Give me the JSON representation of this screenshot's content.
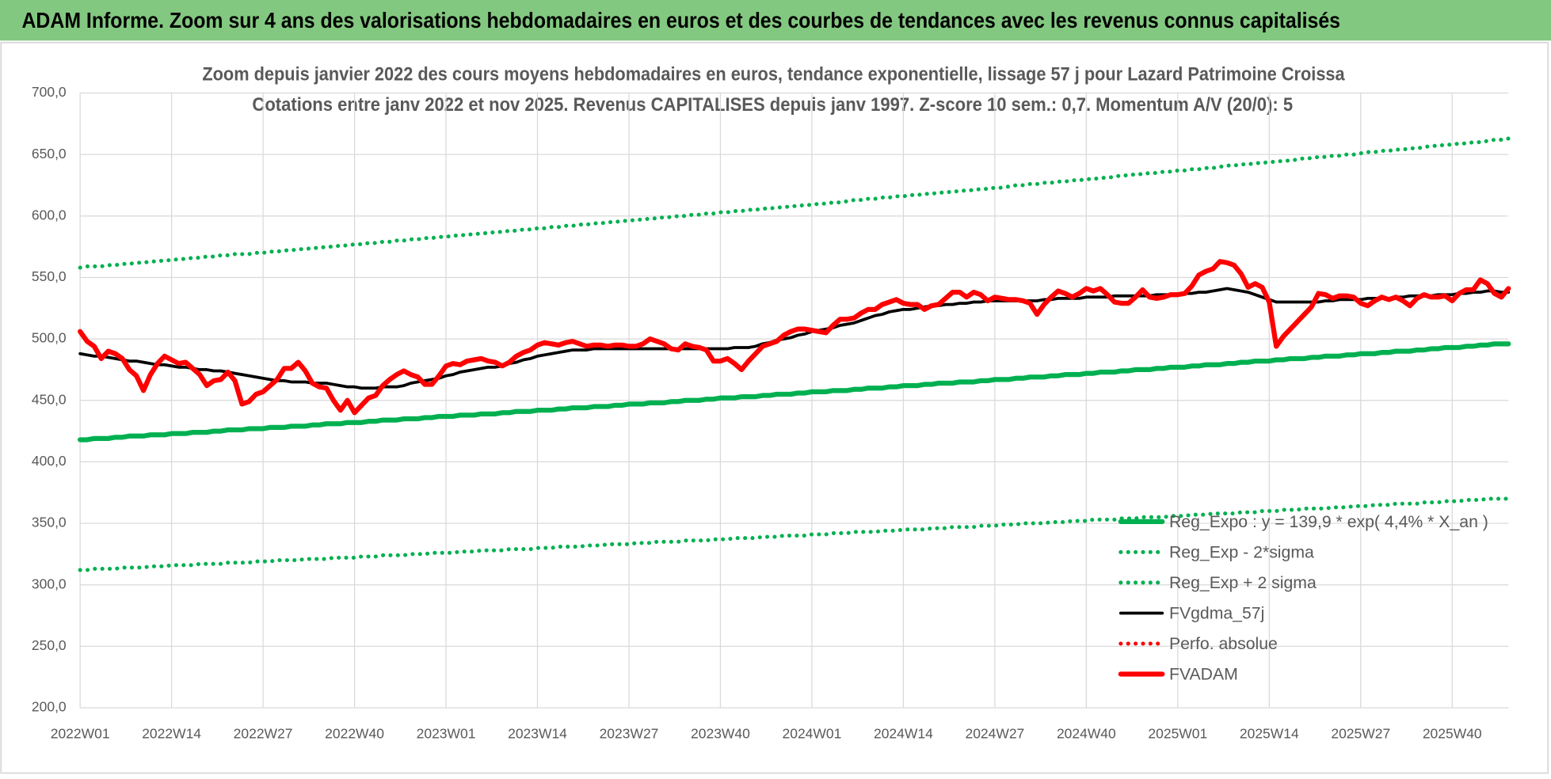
{
  "header": {
    "title": "ADAM Informe. Zoom sur 4 ans des valorisations hebdomadaires en euros et des courbes de tendances avec les revenus connus capitalisés"
  },
  "chart_data": {
    "type": "line",
    "title": "Zoom depuis janvier 2022 des cours moyens hebdomadaires en euros, tendance exponentielle, lissage 57 j pour Lazard Patrimoine Croissa",
    "subtitle": "Cotations entre janv 2022 et nov 2025. Revenus CAPITALISES depuis janv 1997. Z-score 10 sem.: 0,7. Momentum A/V (20/0): 5",
    "ylim": [
      200,
      700
    ],
    "yticks": [
      {
        "value": 200,
        "label": "200,0"
      },
      {
        "value": 250,
        "label": "250,0"
      },
      {
        "value": 300,
        "label": "300,0"
      },
      {
        "value": 350,
        "label": "350,0"
      },
      {
        "value": 400,
        "label": "400,0"
      },
      {
        "value": 450,
        "label": "450,0"
      },
      {
        "value": 500,
        "label": "500,0"
      },
      {
        "value": 550,
        "label": "550,0"
      },
      {
        "value": 600,
        "label": "600,0"
      },
      {
        "value": 650,
        "label": "650,0"
      },
      {
        "value": 700,
        "label": "700,0"
      }
    ],
    "grid": true,
    "legend": "lower right",
    "categories": [
      "2022W01",
      null,
      null,
      null,
      null,
      null,
      null,
      null,
      null,
      null,
      null,
      null,
      null,
      "2022W14",
      null,
      null,
      null,
      null,
      null,
      null,
      null,
      null,
      null,
      null,
      null,
      null,
      "2022W27",
      null,
      null,
      null,
      null,
      null,
      null,
      null,
      null,
      null,
      null,
      null,
      null,
      "2022W40",
      null,
      null,
      null,
      null,
      null,
      null,
      null,
      null,
      null,
      null,
      null,
      null,
      "2023W01",
      null,
      null,
      null,
      null,
      null,
      null,
      null,
      null,
      null,
      null,
      null,
      null,
      "2023W14",
      null,
      null,
      null,
      null,
      null,
      null,
      null,
      null,
      null,
      null,
      null,
      null,
      "2023W27",
      null,
      null,
      null,
      null,
      null,
      null,
      null,
      null,
      null,
      null,
      null,
      null,
      "2023W40",
      null,
      null,
      null,
      null,
      null,
      null,
      null,
      null,
      null,
      null,
      null,
      null,
      "2024W01",
      null,
      null,
      null,
      null,
      null,
      null,
      null,
      null,
      null,
      null,
      null,
      null,
      "2024W14",
      null,
      null,
      null,
      null,
      null,
      null,
      null,
      null,
      null,
      null,
      null,
      null,
      "2024W27",
      null,
      null,
      null,
      null,
      null,
      null,
      null,
      null,
      null,
      null,
      null,
      null,
      "2024W40",
      null,
      null,
      null,
      null,
      null,
      null,
      null,
      null,
      null,
      null,
      null,
      null,
      "2025W01",
      null,
      null,
      null,
      null,
      null,
      null,
      null,
      null,
      null,
      null,
      null,
      null,
      "2025W14",
      null,
      null,
      null,
      null,
      null,
      null,
      null,
      null,
      null,
      null,
      null,
      null,
      "2025W27",
      null,
      null,
      null,
      null,
      null,
      null,
      null,
      null,
      null,
      null,
      null,
      null,
      "2025W40",
      null,
      null,
      null,
      null,
      null,
      null,
      null,
      null
    ],
    "series": [
      {
        "name": "Reg_Expo : y = 139,9 * exp( 4,4% *  X_an )",
        "color": "#00b050",
        "style": "thick",
        "values": [
          418,
          418,
          419,
          419,
          419,
          420,
          420,
          421,
          421,
          421,
          422,
          422,
          422,
          423,
          423,
          423,
          424,
          424,
          424,
          425,
          425,
          426,
          426,
          426,
          427,
          427,
          427,
          428,
          428,
          428,
          429,
          429,
          429,
          430,
          430,
          431,
          431,
          431,
          432,
          432,
          432,
          433,
          433,
          434,
          434,
          434,
          435,
          435,
          435,
          436,
          436,
          437,
          437,
          437,
          438,
          438,
          438,
          439,
          439,
          439,
          440,
          440,
          441,
          441,
          441,
          442,
          442,
          442,
          443,
          443,
          444,
          444,
          444,
          445,
          445,
          445,
          446,
          446,
          447,
          447,
          447,
          448,
          448,
          448,
          449,
          449,
          450,
          450,
          450,
          451,
          451,
          452,
          452,
          452,
          453,
          453,
          453,
          454,
          454,
          455,
          455,
          455,
          456,
          456,
          457,
          457,
          457,
          458,
          458,
          458,
          459,
          459,
          460,
          460,
          460,
          461,
          461,
          462,
          462,
          462,
          463,
          463,
          464,
          464,
          464,
          465,
          465,
          465,
          466,
          466,
          467,
          467,
          467,
          468,
          468,
          469,
          469,
          469,
          470,
          470,
          471,
          471,
          471,
          472,
          472,
          473,
          473,
          473,
          474,
          474,
          475,
          475,
          475,
          476,
          476,
          477,
          477,
          477,
          478,
          478,
          479,
          479,
          479,
          480,
          480,
          481,
          481,
          482,
          482,
          482,
          483,
          483,
          484,
          484,
          484,
          485,
          485,
          486,
          486,
          486,
          487,
          487,
          488,
          488,
          488,
          489,
          489,
          490,
          490,
          490,
          491,
          491,
          492,
          492,
          493,
          493,
          493,
          494,
          494,
          495,
          495,
          496,
          496,
          496
        ]
      },
      {
        "name": "Reg_Exp - 2*sigma",
        "color": "#00b050",
        "style": "dotted",
        "values": [
          312,
          312,
          313,
          313,
          313,
          313,
          314,
          314,
          314,
          314,
          315,
          315,
          315,
          316,
          316,
          316,
          316,
          317,
          317,
          317,
          317,
          318,
          318,
          318,
          318,
          319,
          319,
          319,
          320,
          320,
          320,
          320,
          321,
          321,
          321,
          321,
          322,
          322,
          322,
          322,
          323,
          323,
          323,
          324,
          324,
          324,
          324,
          325,
          325,
          325,
          326,
          326,
          326,
          326,
          327,
          327,
          327,
          328,
          328,
          328,
          328,
          329,
          329,
          329,
          329,
          330,
          330,
          330,
          331,
          331,
          331,
          331,
          332,
          332,
          332,
          333,
          333,
          333,
          333,
          334,
          334,
          334,
          335,
          335,
          335,
          335,
          336,
          336,
          336,
          336,
          337,
          337,
          337,
          338,
          338,
          338,
          338,
          339,
          339,
          339,
          340,
          340,
          340,
          340,
          341,
          341,
          341,
          342,
          342,
          342,
          343,
          343,
          343,
          343,
          344,
          344,
          344,
          345,
          345,
          345,
          345,
          346,
          346,
          346,
          347,
          347,
          347,
          347,
          348,
          348,
          348,
          349,
          349,
          349,
          350,
          350,
          350,
          350,
          351,
          351,
          351,
          352,
          352,
          352,
          353,
          353,
          353,
          353,
          354,
          354,
          354,
          355,
          355,
          355,
          355,
          356,
          356,
          356,
          357,
          357,
          357,
          358,
          358,
          358,
          358,
          359,
          359,
          359,
          360,
          360,
          360,
          361,
          361,
          361,
          362,
          362,
          362,
          362,
          363,
          363,
          363,
          364,
          364,
          364,
          365,
          365,
          365,
          366,
          366,
          366,
          366,
          367,
          367,
          367,
          368,
          368,
          368,
          369,
          369,
          369,
          370,
          370,
          370,
          370
        ]
      },
      {
        "name": "Reg_Exp + 2 sigma",
        "color": "#00b050",
        "style": "dotted",
        "values": [
          558,
          559,
          559,
          559,
          560,
          560,
          561,
          561,
          562,
          562,
          563,
          563,
          564,
          564,
          565,
          565,
          566,
          566,
          567,
          567,
          568,
          568,
          569,
          569,
          569,
          570,
          570,
          571,
          571,
          572,
          572,
          573,
          573,
          574,
          574,
          575,
          575,
          576,
          576,
          577,
          577,
          578,
          578,
          579,
          579,
          580,
          580,
          581,
          581,
          582,
          582,
          583,
          583,
          584,
          584,
          585,
          585,
          586,
          586,
          587,
          587,
          588,
          588,
          589,
          589,
          590,
          590,
          591,
          591,
          592,
          592,
          593,
          593,
          594,
          594,
          595,
          595,
          596,
          596,
          597,
          597,
          598,
          598,
          599,
          599,
          600,
          600,
          601,
          601,
          602,
          602,
          603,
          603,
          604,
          604,
          605,
          605,
          606,
          606,
          607,
          607,
          608,
          608,
          609,
          609,
          610,
          610,
          611,
          611,
          612,
          613,
          613,
          614,
          614,
          615,
          615,
          616,
          616,
          617,
          617,
          618,
          618,
          619,
          619,
          620,
          620,
          621,
          621,
          622,
          622,
          623,
          623,
          624,
          625,
          625,
          626,
          626,
          627,
          627,
          628,
          628,
          629,
          629,
          630,
          630,
          631,
          631,
          632,
          633,
          633,
          634,
          634,
          635,
          635,
          636,
          636,
          637,
          637,
          638,
          638,
          639,
          639,
          640,
          641,
          641,
          642,
          642,
          643,
          643,
          644,
          644,
          645,
          645,
          646,
          647,
          647,
          648,
          648,
          649,
          649,
          650,
          650,
          651,
          652,
          652,
          653,
          653,
          654,
          654,
          655,
          655,
          656,
          657,
          657,
          658,
          658,
          659,
          659,
          660,
          660,
          661,
          662,
          662,
          663
        ]
      },
      {
        "name": "FVgdma_57j",
        "color": "#000000",
        "style": "solid",
        "values": [
          488,
          487,
          486,
          486,
          485,
          484,
          483,
          482,
          482,
          481,
          480,
          479,
          479,
          478,
          477,
          477,
          476,
          475,
          475,
          474,
          474,
          473,
          472,
          471,
          470,
          469,
          468,
          467,
          466,
          466,
          465,
          465,
          465,
          464,
          464,
          464,
          463,
          462,
          461,
          461,
          460,
          460,
          460,
          461,
          461,
          461,
          462,
          464,
          465,
          466,
          467,
          468,
          470,
          471,
          473,
          474,
          475,
          476,
          477,
          477,
          478,
          480,
          481,
          483,
          484,
          486,
          487,
          488,
          489,
          490,
          491,
          491,
          491,
          492,
          492,
          492,
          492,
          492,
          492,
          492,
          492,
          492,
          492,
          492,
          492,
          492,
          492,
          492,
          492,
          492,
          492,
          492,
          492,
          493,
          493,
          493,
          494,
          496,
          497,
          499,
          500,
          501,
          503,
          504,
          506,
          507,
          508,
          509,
          511,
          512,
          513,
          515,
          517,
          519,
          520,
          522,
          523,
          524,
          524,
          525,
          526,
          527,
          527,
          528,
          528,
          529,
          529,
          530,
          530,
          531,
          531,
          531,
          531,
          531,
          531,
          531,
          531,
          532,
          532,
          533,
          533,
          533,
          533,
          534,
          534,
          534,
          534,
          535,
          535,
          535,
          535,
          535,
          535,
          536,
          536,
          536,
          536,
          537,
          537,
          538,
          538,
          539,
          540,
          541,
          540,
          539,
          538,
          536,
          534,
          532,
          530,
          530,
          530,
          530,
          530,
          530,
          530,
          531,
          531,
          532,
          532,
          532,
          532,
          533,
          533,
          533,
          533,
          534,
          534,
          535,
          535,
          535,
          535,
          536,
          536,
          536,
          537,
          537,
          538,
          538,
          539,
          539,
          538,
          538
        ]
      },
      {
        "name": "Perfo. absolue",
        "color": "#ff0000",
        "style": "dotted"
      },
      {
        "name": "FVADAM",
        "color": "#ff0000",
        "style": "thick",
        "values": [
          506,
          498,
          494,
          484,
          490,
          488,
          484,
          475,
          470,
          458,
          471,
          480,
          486,
          483,
          480,
          481,
          476,
          471,
          462,
          466,
          467,
          473,
          466,
          447,
          449,
          455,
          457,
          462,
          467,
          476,
          476,
          481,
          474,
          464,
          461,
          460,
          450,
          442,
          450,
          440,
          446,
          452,
          454,
          462,
          467,
          471,
          474,
          471,
          469,
          463,
          463,
          470,
          478,
          480,
          479,
          482,
          483,
          484,
          482,
          481,
          478,
          481,
          486,
          489,
          491,
          495,
          497,
          496,
          495,
          497,
          498,
          496,
          494,
          495,
          495,
          494,
          495,
          495,
          494,
          494,
          496,
          500,
          498,
          496,
          492,
          491,
          496,
          494,
          493,
          491,
          482,
          482,
          484,
          480,
          475,
          482,
          488,
          494,
          496,
          498,
          503,
          506,
          508,
          508,
          507,
          506,
          505,
          511,
          516,
          516,
          517,
          521,
          524,
          524,
          528,
          530,
          532,
          529,
          528,
          528,
          524,
          527,
          528,
          533,
          538,
          538,
          534,
          538,
          536,
          531,
          534,
          533,
          532,
          532,
          531,
          529,
          520,
          528,
          534,
          539,
          537,
          534,
          537,
          541,
          539,
          541,
          536,
          530,
          529,
          529,
          534,
          540,
          534,
          533,
          534,
          536,
          536,
          537,
          543,
          552,
          555,
          557,
          563,
          562,
          560,
          553,
          542,
          545,
          542,
          530,
          494,
          502,
          508,
          514,
          520,
          526,
          537,
          536,
          533,
          535,
          535,
          534,
          529,
          527,
          531,
          534,
          532,
          534,
          531,
          527,
          533,
          536,
          534,
          534,
          535,
          531,
          537,
          540,
          540,
          548,
          545,
          537,
          534,
          541
        ]
      }
    ]
  }
}
